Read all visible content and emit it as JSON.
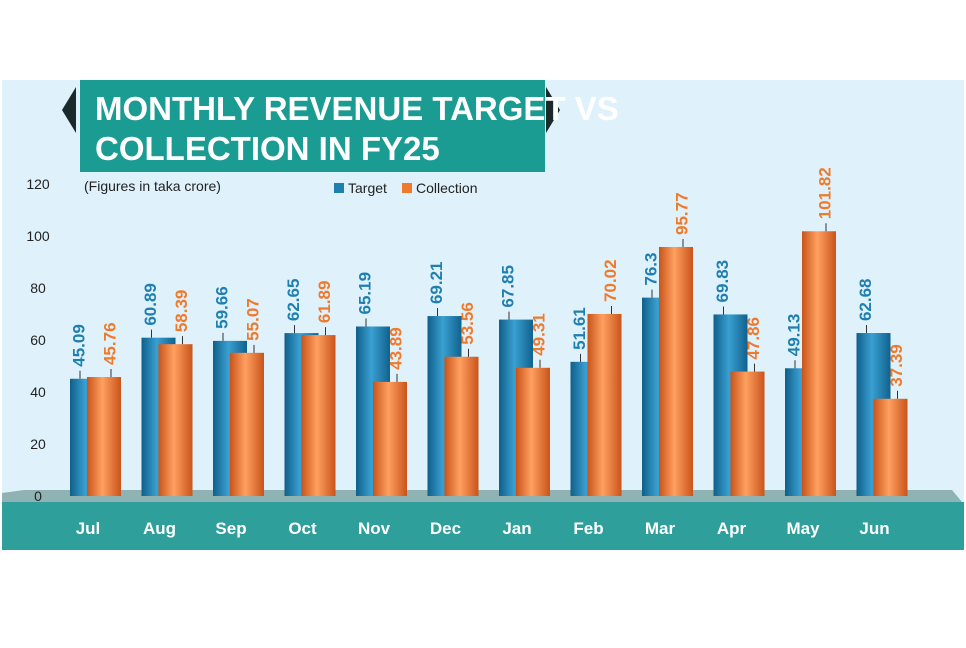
{
  "title_line1": "MONTHLY REVENUE TARGET VS",
  "title_line2": "COLLECTION IN FY25",
  "subtitle": "(Figures in taka crore)",
  "colors": {
    "target": "#1f7fb0",
    "collection": "#ef7a2c",
    "banner": "#1b9c92",
    "background": "#dff1fa",
    "base": "#7ea6a8",
    "base_front": "#3aa7a3"
  },
  "chart_data": {
    "type": "bar",
    "title": "MONTHLY REVENUE TARGET VS COLLECTION IN FY25",
    "subtitle": "(Figures in taka crore)",
    "categories": [
      "Jul",
      "Aug",
      "Sep",
      "Oct",
      "Nov",
      "Dec",
      "Jan",
      "Feb",
      "Mar",
      "Apr",
      "May",
      "Jun"
    ],
    "series": [
      {
        "name": "Target",
        "values": [
          45.09,
          60.89,
          59.66,
          62.65,
          65.19,
          69.21,
          67.85,
          51.61,
          76.3,
          69.83,
          49.13,
          62.68
        ],
        "labels": [
          "45.09",
          "60.89",
          "59.66",
          "62.65",
          "65.19",
          "69.21",
          "67.85",
          "51.61",
          "76.3",
          "69.83",
          "49.13",
          "62.68"
        ]
      },
      {
        "name": "Collection",
        "values": [
          45.76,
          58.39,
          55.07,
          61.89,
          43.89,
          53.56,
          49.31,
          70.02,
          95.77,
          47.86,
          101.82,
          37.39
        ],
        "labels": [
          "45.76",
          "58.39",
          "55.07",
          "61.89",
          "43.89",
          "53.56",
          "49.31",
          "70.02",
          "95.77",
          "47.86",
          "101.82",
          "37.39"
        ]
      }
    ],
    "yticks": [
      "0",
      "20",
      "40",
      "60",
      "80",
      "100",
      "120"
    ],
    "ylim": [
      0,
      120
    ],
    "legend_position": "top-center",
    "grid": false
  }
}
